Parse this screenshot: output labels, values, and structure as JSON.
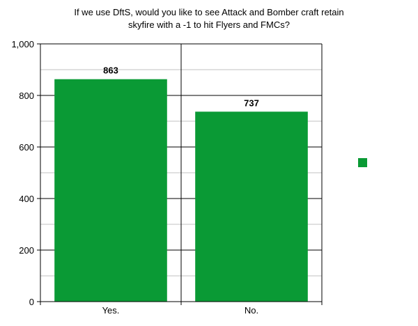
{
  "chart_data": {
    "type": "bar",
    "title_lines": [
      "If we use DftS, would you like to see Attack and Bomber craft retain",
      "skyfire with a -1 to hit Flyers and FMCs?"
    ],
    "categories": [
      "Yes.",
      "No."
    ],
    "values": [
      863,
      737
    ],
    "data_labels": [
      "863",
      "737"
    ],
    "ylim": [
      0,
      1000
    ],
    "y_ticks": [
      0,
      200,
      400,
      600,
      800,
      1000
    ],
    "y_tick_labels": [
      "0",
      "200",
      "400",
      "600",
      "800",
      "1,000"
    ],
    "minor_step": 100,
    "grid": true,
    "legend": "right",
    "legend_entries": [
      ""
    ],
    "bar_color": "#0a9a35",
    "grid_color": "#c0c0c0",
    "axis_color": "#000000"
  }
}
